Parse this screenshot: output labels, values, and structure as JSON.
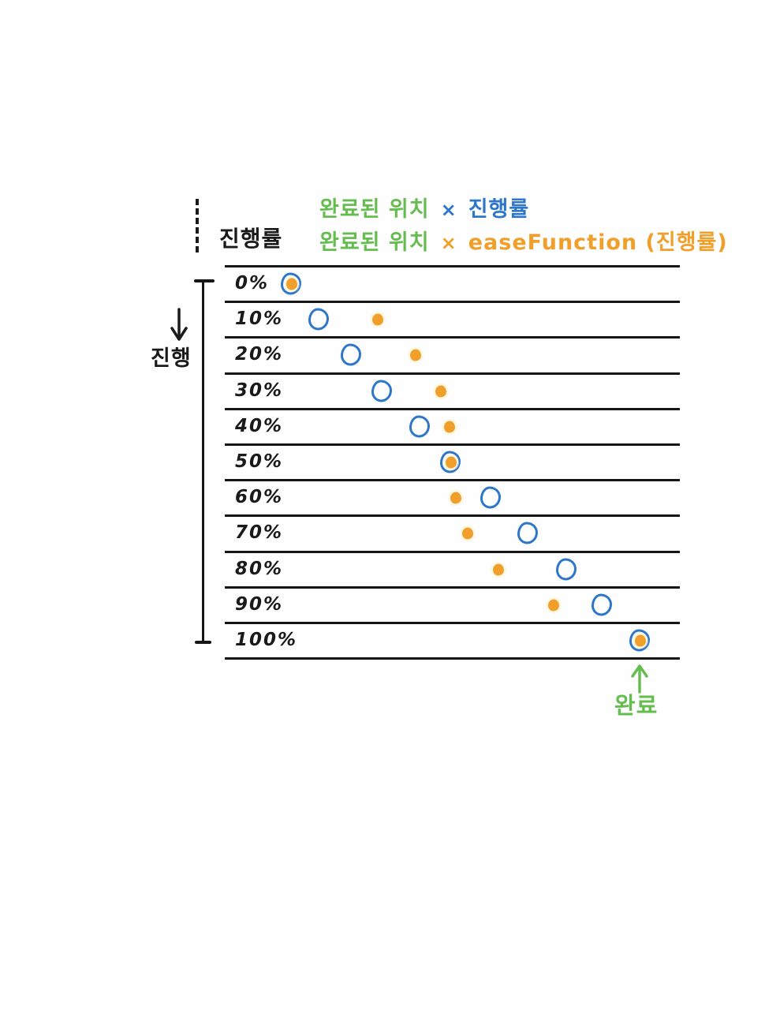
{
  "colors": {
    "ink": "#1a1a1a",
    "blue": "#2e77c8",
    "green": "#66bd4f",
    "orange": "#f0a02a",
    "background": "#fefefe"
  },
  "header": {
    "axis_label": "진행률",
    "formula_linear": {
      "lhs": "완료된 위치",
      "op": "×",
      "rhs": "진행률"
    },
    "formula_eased": {
      "lhs": "완료된 위치",
      "op": "×",
      "rhs": "easeFunction (진행률)"
    }
  },
  "side": {
    "progress_label": "진행"
  },
  "footer": {
    "complete_label": "완료"
  },
  "markers": {
    "linear_marker": "blue-outline-circle",
    "eased_marker": "orange-filled-dot"
  },
  "rows": [
    {
      "label": "0%",
      "linear": 0.0,
      "eased": 0.0
    },
    {
      "label": "10%",
      "linear": 0.079,
      "eased": 0.247
    },
    {
      "label": "20%",
      "linear": 0.172,
      "eased": 0.355
    },
    {
      "label": "30%",
      "linear": 0.26,
      "eased": 0.428
    },
    {
      "label": "40%",
      "linear": 0.369,
      "eased": 0.452
    },
    {
      "label": "50%",
      "linear": 0.457,
      "eased": 0.457
    },
    {
      "label": "60%",
      "linear": 0.572,
      "eased": 0.471
    },
    {
      "label": "70%",
      "linear": 0.679,
      "eased": 0.505
    },
    {
      "label": "80%",
      "linear": 0.79,
      "eased": 0.593
    },
    {
      "label": "90%",
      "linear": 0.891,
      "eased": 0.751
    },
    {
      "label": "100%",
      "linear": 1.0,
      "eased": 1.0
    }
  ]
}
